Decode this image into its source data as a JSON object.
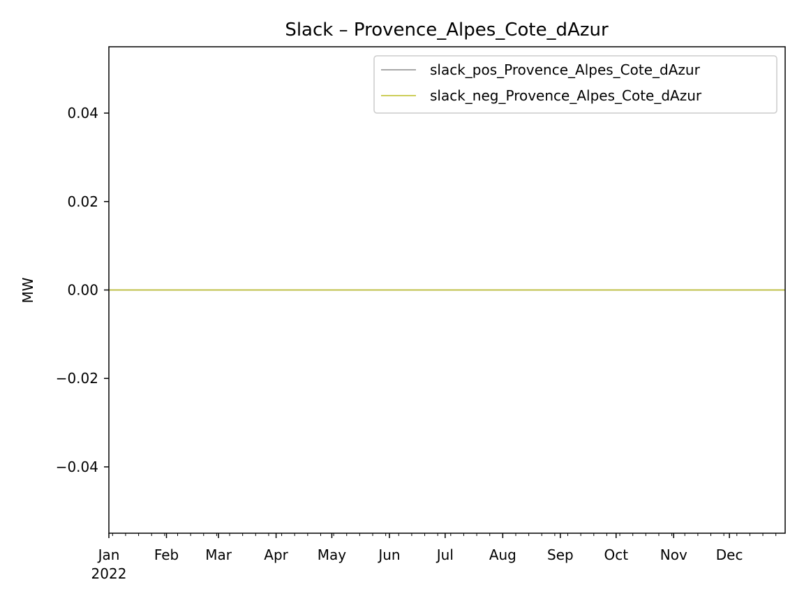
{
  "chart_data": {
    "type": "line",
    "title": "Slack – Provence_Alpes_Cote_dAzur",
    "ylabel": "MW",
    "xlabel": "",
    "x_range": [
      "2022-01-01",
      "2022-12-31"
    ],
    "ylim": [
      -0.055,
      0.055
    ],
    "x_ticks": [
      {
        "date": "2022-01-01",
        "label": "Jan"
      },
      {
        "date": "2022-02-01",
        "label": "Feb"
      },
      {
        "date": "2022-03-01",
        "label": "Mar"
      },
      {
        "date": "2022-04-01",
        "label": "Apr"
      },
      {
        "date": "2022-05-01",
        "label": "May"
      },
      {
        "date": "2022-06-01",
        "label": "Jun"
      },
      {
        "date": "2022-07-01",
        "label": "Jul"
      },
      {
        "date": "2022-08-01",
        "label": "Aug"
      },
      {
        "date": "2022-09-01",
        "label": "Sep"
      },
      {
        "date": "2022-10-01",
        "label": "Oct"
      },
      {
        "date": "2022-11-01",
        "label": "Nov"
      },
      {
        "date": "2022-12-01",
        "label": "Dec"
      }
    ],
    "x_year_label": "2022",
    "y_ticks": [
      {
        "value": 0.04,
        "label": "0.04"
      },
      {
        "value": 0.02,
        "label": "0.02"
      },
      {
        "value": 0.0,
        "label": "0.00"
      },
      {
        "value": -0.02,
        "label": "−0.02"
      },
      {
        "value": -0.04,
        "label": "−0.04"
      }
    ],
    "grid": false,
    "legend_position": "top-right",
    "series": [
      {
        "name": "slack_pos_Provence_Alpes_Cote_dAzur",
        "color": "#8c8c8c",
        "x": [
          "2022-01-01",
          "2022-12-31"
        ],
        "y": [
          0,
          0
        ]
      },
      {
        "name": "slack_neg_Provence_Alpes_Cote_dAzur",
        "color": "#bcbd22",
        "x": [
          "2022-01-01",
          "2022-12-31"
        ],
        "y": [
          0,
          0
        ]
      }
    ]
  }
}
